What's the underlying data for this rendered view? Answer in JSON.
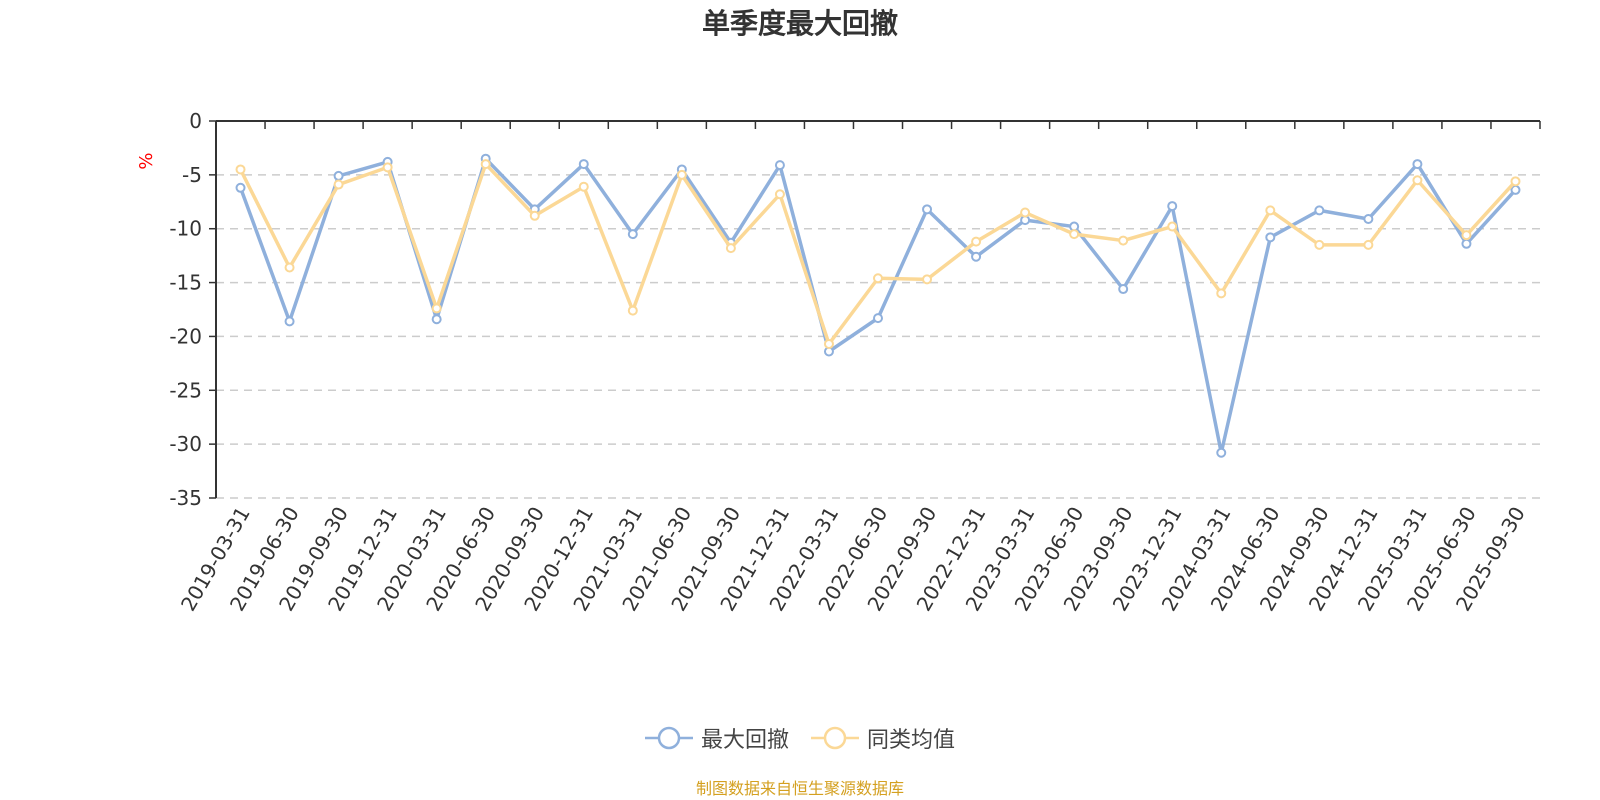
{
  "colors": {
    "series1": "#8fb0dc",
    "series2": "#fbd896",
    "axis": "#333333",
    "grid": "#cccccc",
    "unit": "#ff0000",
    "source": "#d4a020"
  },
  "source_text": "制图数据来自恒生聚源数据库",
  "chart_data": {
    "type": "line",
    "title": "单季度最大回撤",
    "ylabel": "%",
    "xlabel": "",
    "ylim": [
      -35,
      0
    ],
    "yticks": [
      0,
      -5,
      -10,
      -15,
      -20,
      -25,
      -30,
      -35
    ],
    "grid": true,
    "legend_position": "bottom-center",
    "categories": [
      "2019-03-31",
      "2019-06-30",
      "2019-09-30",
      "2019-12-31",
      "2020-03-31",
      "2020-06-30",
      "2020-09-30",
      "2020-12-31",
      "2021-03-31",
      "2021-06-30",
      "2021-09-30",
      "2021-12-31",
      "2022-03-31",
      "2022-06-30",
      "2022-09-30",
      "2022-12-31",
      "2023-03-31",
      "2023-06-30",
      "2023-09-30",
      "2023-12-31",
      "2024-03-31",
      "2024-06-30",
      "2024-09-30",
      "2024-12-31",
      "2025-03-31",
      "2025-06-30",
      "2025-09-30"
    ],
    "series": [
      {
        "name": "最大回撤",
        "color_key": "series1",
        "values": [
          -6.2,
          -18.6,
          -5.1,
          -3.8,
          -18.4,
          -3.5,
          -8.2,
          -4.0,
          -10.5,
          -4.5,
          -11.3,
          -4.1,
          -21.4,
          -18.3,
          -8.2,
          -12.6,
          -9.2,
          -9.8,
          -15.6,
          -7.9,
          -30.8,
          -10.8,
          -8.3,
          -9.1,
          -4.0,
          -11.4,
          -6.4
        ]
      },
      {
        "name": "同类均值",
        "color_key": "series2",
        "values": [
          -4.5,
          -13.6,
          -5.9,
          -4.3,
          -17.4,
          -4.0,
          -8.8,
          -6.1,
          -17.6,
          -5.0,
          -11.8,
          -6.8,
          -20.7,
          -14.6,
          -14.7,
          -11.2,
          -8.5,
          -10.5,
          -11.1,
          -9.8,
          -16.0,
          -8.3,
          -11.5,
          -11.5,
          -5.5,
          -10.6,
          -5.6
        ]
      }
    ]
  }
}
